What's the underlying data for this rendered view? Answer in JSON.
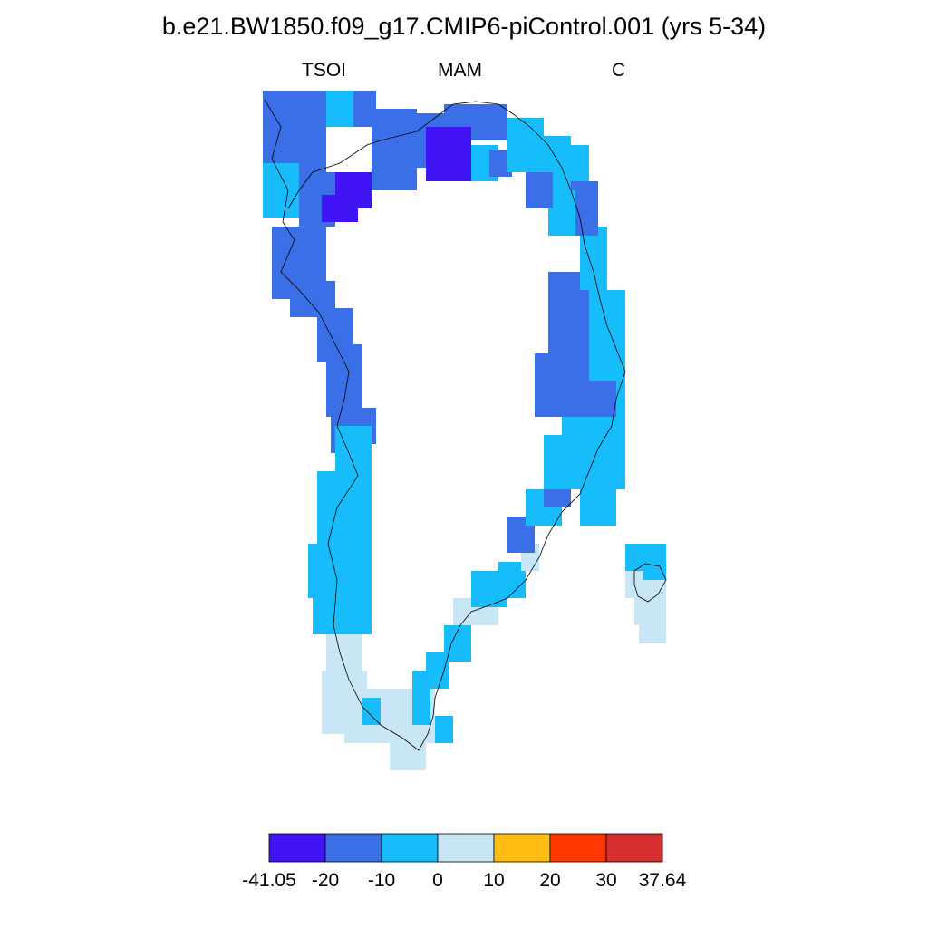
{
  "title": "b.e21.BW1850.f09_g17.CMIP6-piControl.001 (yrs 5-34)",
  "subtitle": {
    "left": "TSOI",
    "center": "MAM",
    "right": "C"
  },
  "colorbar": {
    "labels": [
      "-41.05",
      "-20",
      "-10",
      "0",
      "10",
      "20",
      "30",
      "37.64"
    ],
    "colors": [
      "#4114f5",
      "#3a6fe8",
      "#17bdfa",
      "#c8e6f6",
      "#ffbd12",
      "#ff3700",
      "#d42e2e"
    ]
  },
  "map_colors": {
    "land_outline": "#000000",
    "background": "#ffffff"
  }
}
